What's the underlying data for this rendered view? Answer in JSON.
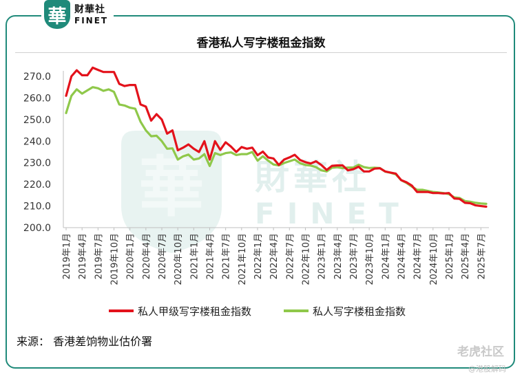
{
  "brand": {
    "logo_char": "華",
    "name_cn": "财華社",
    "name_en": "FINET"
  },
  "watermark": {
    "name_cn": "財華社",
    "name_en": "FINET",
    "logo_char": "華",
    "tiger_text": "老虎社区",
    "author_text": "@港股解码"
  },
  "chart_data": {
    "type": "line",
    "title": "香港私人写字楼租金指数",
    "ylim": [
      200.0,
      270.0
    ],
    "y_ticks": [
      "270.0",
      "260.0",
      "250.0",
      "240.0",
      "230.0",
      "220.0",
      "210.0",
      "200.0"
    ],
    "x_tick_labels": [
      "2019年1月",
      "2019年4月",
      "2019年7月",
      "2019年10月",
      "2020年1月",
      "2020年4月",
      "2020年7月",
      "2020年10月",
      "2021年1月",
      "2021年4月",
      "2021年7月",
      "2021年10月",
      "2022年1月",
      "2022年4月",
      "2022年7月",
      "2022年10月",
      "2023年1月",
      "2023年4月",
      "2023年7月",
      "2023年10月",
      "2024年1月",
      "2024年4月",
      "2024年7月",
      "2024年10月",
      "2025年1月",
      "2025年4月",
      "2025年7月"
    ],
    "x": [
      "2019-01",
      "2019-02",
      "2019-03",
      "2019-04",
      "2019-05",
      "2019-06",
      "2019-07",
      "2019-08",
      "2019-09",
      "2019-10",
      "2019-11",
      "2019-12",
      "2020-01",
      "2020-02",
      "2020-03",
      "2020-04",
      "2020-05",
      "2020-06",
      "2020-07",
      "2020-08",
      "2020-09",
      "2020-10",
      "2020-11",
      "2020-12",
      "2021-01",
      "2021-02",
      "2021-03",
      "2021-04",
      "2021-05",
      "2021-06",
      "2021-07",
      "2021-08",
      "2021-09",
      "2021-10",
      "2021-11",
      "2021-12",
      "2022-01",
      "2022-02",
      "2022-03",
      "2022-04",
      "2022-05",
      "2022-06",
      "2022-07",
      "2022-08",
      "2022-09",
      "2022-10",
      "2022-11",
      "2022-12",
      "2023-01",
      "2023-02",
      "2023-03",
      "2023-04",
      "2023-05",
      "2023-06",
      "2023-07",
      "2023-08",
      "2023-09",
      "2023-10",
      "2023-11",
      "2023-12",
      "2024-01",
      "2024-02",
      "2024-03",
      "2024-04",
      "2024-05",
      "2024-06",
      "2024-07",
      "2024-08",
      "2024-09",
      "2024-10",
      "2024-11",
      "2024-12",
      "2025-01",
      "2025-02",
      "2025-03",
      "2025-04",
      "2025-05",
      "2025-06",
      "2025-07",
      "2025-08"
    ],
    "series": [
      {
        "name": "私人甲级写字楼租金指数",
        "color": "#e3121b",
        "values": [
          261.0,
          270.0,
          272.8,
          270.5,
          270.5,
          274.0,
          273.0,
          272.0,
          272.0,
          272.0,
          266.5,
          265.5,
          266.0,
          266.0,
          257.0,
          256.0,
          249.5,
          252.5,
          250.0,
          243.5,
          245.0,
          235.8,
          237.0,
          238.5,
          236.5,
          235.0,
          240.0,
          231.5,
          240.0,
          236.0,
          239.5,
          237.5,
          235.0,
          237.3,
          236.5,
          237.0,
          233.5,
          235.2,
          232.5,
          232.0,
          229.0,
          231.5,
          232.5,
          233.7,
          231.3,
          230.3,
          229.7,
          230.7,
          229.0,
          226.7,
          228.6,
          228.8,
          228.8,
          226.5,
          227.0,
          228.2,
          226.0,
          226.0,
          227.3,
          227.5,
          226.0,
          225.5,
          225.0,
          222.0,
          221.0,
          219.5,
          216.5,
          216.5,
          216.5,
          216.0,
          216.0,
          215.8,
          216.0,
          213.5,
          213.3,
          211.5,
          211.3,
          210.3,
          210.0,
          209.7
        ]
      },
      {
        "name": "私人写字楼租金指数",
        "color": "#8fc84a",
        "values": [
          253.0,
          261.0,
          264.0,
          262.0,
          263.5,
          265.0,
          264.5,
          263.3,
          264.0,
          262.8,
          257.0,
          256.5,
          255.5,
          255.0,
          249.0,
          245.0,
          242.3,
          242.5,
          240.0,
          236.5,
          236.7,
          231.5,
          233.0,
          233.8,
          231.5,
          232.0,
          234.0,
          228.5,
          234.5,
          233.6,
          234.5,
          234.8,
          233.6,
          234.0,
          234.0,
          235.0,
          231.0,
          233.0,
          231.0,
          229.2,
          228.8,
          229.9,
          230.7,
          231.5,
          229.8,
          229.0,
          228.7,
          228.0,
          226.5,
          226.0,
          227.7,
          228.0,
          227.5,
          227.8,
          227.8,
          229.1,
          228.0,
          227.6,
          227.7,
          227.6,
          225.9,
          225.4,
          224.7,
          222.0,
          220.7,
          219.0,
          217.5,
          217.5,
          217.0,
          216.5,
          216.3,
          216.0,
          215.5,
          214.0,
          213.7,
          212.3,
          212.0,
          211.5,
          211.2,
          211.0
        ]
      }
    ],
    "legend_position": "bottom",
    "grid": false
  },
  "source_text": "来源：  香港差饷物业估价署"
}
